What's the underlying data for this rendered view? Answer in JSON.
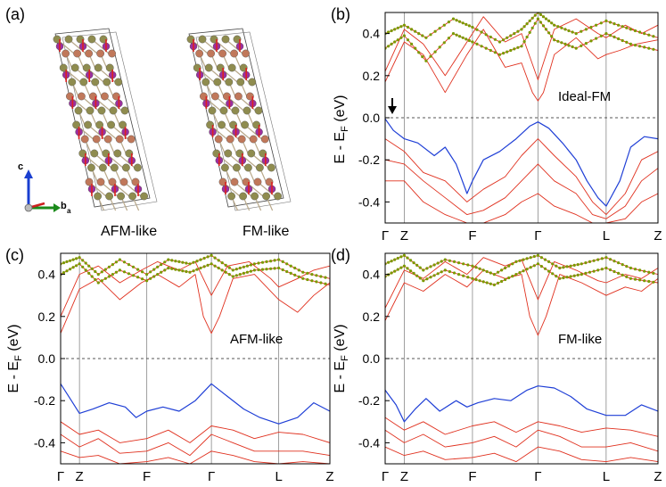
{
  "figure": {
    "panel_a": {
      "label": "(a)",
      "structures": [
        "AFM-like",
        "FM-like"
      ],
      "axes_labels": {
        "c": "c",
        "b": "b",
        "a": "a"
      },
      "colors": {
        "atom_olive": "#8f8c4f",
        "atom_copper": "#c0785a",
        "atom_magenta": "#9b2fa0",
        "spin_arrow": "#dd2020",
        "bond": "#b8a88a"
      }
    }
  },
  "chart_data": [
    {
      "id": "b",
      "type": "line",
      "panel_label": "(b)",
      "annotation": "Ideal-FM",
      "ylabel": "E - E",
      "ylabel_sub": "F",
      "ylabel_unit": " (eV)",
      "ylim": [
        -0.5,
        0.5
      ],
      "yticks": [
        "0.4",
        "0.2",
        "0.0",
        "-0.2",
        "-0.4"
      ],
      "ytick_values": [
        0.4,
        0.2,
        0.0,
        -0.2,
        -0.4
      ],
      "kpoints": [
        "Γ",
        "Z",
        "F",
        "Γ",
        "L",
        "Z"
      ],
      "kpositions": [
        0,
        0.07,
        0.32,
        0.56,
        0.81,
        1.0
      ],
      "fermi_level": 0.0,
      "colors": {
        "band": "#e0301e",
        "top_valence": "#1f3fd6",
        "marker": "#7a9a00"
      },
      "top_valence_band": {
        "k": [
          0,
          0.03,
          0.07,
          0.12,
          0.18,
          0.22,
          0.26,
          0.3,
          0.32,
          0.36,
          0.42,
          0.48,
          0.53,
          0.56,
          0.6,
          0.65,
          0.7,
          0.74,
          0.78,
          0.81,
          0.86,
          0.9,
          0.95,
          1.0
        ],
        "E": [
          -0.005,
          -0.06,
          -0.1,
          -0.12,
          -0.18,
          -0.14,
          -0.22,
          -0.36,
          -0.3,
          -0.2,
          -0.16,
          -0.1,
          -0.04,
          -0.02,
          -0.05,
          -0.12,
          -0.2,
          -0.3,
          -0.38,
          -0.42,
          -0.3,
          -0.14,
          -0.09,
          -0.1
        ]
      },
      "marker_bands": [
        {
          "k": [
            0,
            0.07,
            0.15,
            0.25,
            0.32,
            0.42,
            0.5,
            0.56,
            0.62,
            0.7,
            0.81,
            0.9,
            1.0
          ],
          "E": [
            0.4,
            0.44,
            0.38,
            0.47,
            0.43,
            0.36,
            0.42,
            0.5,
            0.44,
            0.4,
            0.46,
            0.42,
            0.38
          ]
        },
        {
          "k": [
            0,
            0.07,
            0.15,
            0.25,
            0.32,
            0.42,
            0.5,
            0.56,
            0.62,
            0.7,
            0.81,
            0.9,
            1.0
          ],
          "E": [
            0.33,
            0.39,
            0.27,
            0.4,
            0.36,
            0.3,
            0.34,
            0.47,
            0.37,
            0.33,
            0.4,
            0.35,
            0.32
          ]
        }
      ],
      "conduction_bands": [
        {
          "k": [
            0,
            0.07,
            0.14,
            0.22,
            0.3,
            0.36,
            0.44,
            0.5,
            0.54,
            0.56,
            0.58,
            0.62,
            0.7,
            0.78,
            0.81,
            0.86,
            0.92,
            1.0
          ],
          "E": [
            0.17,
            0.36,
            0.3,
            0.12,
            0.3,
            0.42,
            0.24,
            0.26,
            0.12,
            0.08,
            0.12,
            0.3,
            0.38,
            0.28,
            0.3,
            0.32,
            0.35,
            0.37
          ]
        },
        {
          "k": [
            0,
            0.07,
            0.14,
            0.22,
            0.3,
            0.36,
            0.44,
            0.5,
            0.56,
            0.62,
            0.7,
            0.78,
            0.81,
            0.88,
            0.94,
            1.0
          ],
          "E": [
            0.22,
            0.42,
            0.35,
            0.2,
            0.36,
            0.48,
            0.36,
            0.4,
            0.18,
            0.42,
            0.47,
            0.4,
            0.38,
            0.44,
            0.4,
            0.44
          ]
        }
      ],
      "valence_bands": [
        {
          "k": [
            0,
            0.07,
            0.14,
            0.22,
            0.3,
            0.36,
            0.44,
            0.5,
            0.56,
            0.62,
            0.7,
            0.76,
            0.81,
            0.88,
            0.94,
            1.0
          ],
          "E": [
            -0.1,
            -0.16,
            -0.26,
            -0.3,
            -0.4,
            -0.34,
            -0.28,
            -0.18,
            -0.1,
            -0.18,
            -0.28,
            -0.4,
            -0.46,
            -0.36,
            -0.2,
            -0.16
          ]
        },
        {
          "k": [
            0,
            0.07,
            0.14,
            0.22,
            0.3,
            0.36,
            0.44,
            0.5,
            0.56,
            0.62,
            0.7,
            0.76,
            0.81,
            0.88,
            0.94,
            1.0
          ],
          "E": [
            -0.2,
            -0.22,
            -0.3,
            -0.38,
            -0.46,
            -0.44,
            -0.38,
            -0.3,
            -0.22,
            -0.3,
            -0.36,
            -0.46,
            -0.48,
            -0.42,
            -0.3,
            -0.24
          ]
        },
        {
          "k": [
            0,
            0.07,
            0.14,
            0.22,
            0.3,
            0.36,
            0.44,
            0.5,
            0.56,
            0.62,
            0.7,
            0.76,
            0.81,
            0.88,
            0.94,
            1.0
          ],
          "E": [
            -0.3,
            -0.3,
            -0.4,
            -0.46,
            -0.5,
            -0.5,
            -0.46,
            -0.4,
            -0.36,
            -0.42,
            -0.46,
            -0.5,
            -0.5,
            -0.48,
            -0.4,
            -0.36
          ]
        }
      ]
    },
    {
      "id": "c",
      "type": "line",
      "panel_label": "(c)",
      "annotation": "AFM-like",
      "ylabel": "E - E",
      "ylabel_sub": "F",
      "ylabel_unit": " (eV)",
      "ylim": [
        -0.5,
        0.5
      ],
      "yticks": [
        "0.4",
        "0.2",
        "0.0",
        "-0.2",
        "-0.4"
      ],
      "ytick_values": [
        0.4,
        0.2,
        0.0,
        -0.2,
        -0.4
      ],
      "kpoints": [
        "Γ",
        "Z",
        "F",
        "Γ",
        "L",
        "Z"
      ],
      "kpositions": [
        0,
        0.07,
        0.32,
        0.56,
        0.81,
        1.0
      ],
      "fermi_level": 0.0,
      "colors": {
        "band": "#e0301e",
        "top_valence": "#1f3fd6",
        "marker": "#7a9a00"
      },
      "top_valence_band": {
        "k": [
          0,
          0.04,
          0.07,
          0.12,
          0.18,
          0.24,
          0.28,
          0.32,
          0.38,
          0.44,
          0.5,
          0.56,
          0.62,
          0.68,
          0.74,
          0.81,
          0.88,
          0.94,
          1.0
        ],
        "E": [
          -0.12,
          -0.2,
          -0.26,
          -0.24,
          -0.21,
          -0.23,
          -0.28,
          -0.25,
          -0.23,
          -0.25,
          -0.2,
          -0.12,
          -0.18,
          -0.24,
          -0.28,
          -0.31,
          -0.28,
          -0.21,
          -0.25
        ]
      },
      "marker_bands": [
        {
          "k": [
            0,
            0.07,
            0.14,
            0.22,
            0.32,
            0.4,
            0.48,
            0.56,
            0.64,
            0.72,
            0.81,
            0.9,
            1.0
          ],
          "E": [
            0.45,
            0.48,
            0.4,
            0.47,
            0.4,
            0.47,
            0.45,
            0.49,
            0.42,
            0.45,
            0.47,
            0.41,
            0.38
          ]
        },
        {
          "k": [
            0,
            0.07,
            0.14,
            0.22,
            0.32,
            0.4,
            0.48,
            0.56,
            0.64,
            0.72,
            0.81,
            0.9,
            1.0
          ],
          "E": [
            0.4,
            0.45,
            0.36,
            0.42,
            0.37,
            0.43,
            0.41,
            0.45,
            0.39,
            0.42,
            0.43,
            0.38,
            0.35
          ]
        }
      ],
      "conduction_bands": [
        {
          "k": [
            0,
            0.07,
            0.14,
            0.22,
            0.3,
            0.36,
            0.44,
            0.5,
            0.53,
            0.56,
            0.59,
            0.64,
            0.72,
            0.81,
            0.88,
            0.94,
            1.0
          ],
          "E": [
            0.12,
            0.33,
            0.38,
            0.28,
            0.36,
            0.4,
            0.34,
            0.4,
            0.2,
            0.12,
            0.2,
            0.38,
            0.4,
            0.28,
            0.22,
            0.3,
            0.36
          ]
        },
        {
          "k": [
            0,
            0.07,
            0.14,
            0.22,
            0.3,
            0.36,
            0.44,
            0.5,
            0.56,
            0.62,
            0.7,
            0.78,
            0.81,
            0.88,
            0.94,
            1.0
          ],
          "E": [
            0.2,
            0.4,
            0.44,
            0.36,
            0.42,
            0.46,
            0.42,
            0.46,
            0.3,
            0.44,
            0.46,
            0.38,
            0.34,
            0.38,
            0.42,
            0.44
          ]
        }
      ],
      "valence_bands": [
        {
          "k": [
            0,
            0.07,
            0.14,
            0.22,
            0.32,
            0.4,
            0.48,
            0.56,
            0.64,
            0.72,
            0.81,
            0.9,
            1.0
          ],
          "E": [
            -0.3,
            -0.36,
            -0.34,
            -0.4,
            -0.38,
            -0.34,
            -0.4,
            -0.32,
            -0.34,
            -0.38,
            -0.35,
            -0.36,
            -0.4
          ]
        },
        {
          "k": [
            0,
            0.07,
            0.14,
            0.22,
            0.32,
            0.4,
            0.48,
            0.56,
            0.64,
            0.72,
            0.81,
            0.9,
            1.0
          ],
          "E": [
            -0.36,
            -0.42,
            -0.38,
            -0.45,
            -0.44,
            -0.4,
            -0.46,
            -0.36,
            -0.4,
            -0.44,
            -0.44,
            -0.44,
            -0.46
          ]
        },
        {
          "k": [
            0,
            0.07,
            0.14,
            0.22,
            0.32,
            0.4,
            0.48,
            0.56,
            0.64,
            0.72,
            0.81,
            0.9,
            1.0
          ],
          "E": [
            -0.44,
            -0.47,
            -0.46,
            -0.5,
            -0.49,
            -0.47,
            -0.5,
            -0.44,
            -0.46,
            -0.49,
            -0.5,
            -0.49,
            -0.5
          ]
        }
      ]
    },
    {
      "id": "d",
      "type": "line",
      "panel_label": "(d)",
      "annotation": "FM-like",
      "ylabel": "E - E",
      "ylabel_sub": "F",
      "ylabel_unit": " (eV)",
      "ylim": [
        -0.5,
        0.5
      ],
      "yticks": [
        "0.4",
        "0.2",
        "0.0",
        "-0.2",
        "-0.4"
      ],
      "ytick_values": [
        0.4,
        0.2,
        0.0,
        -0.2,
        -0.4
      ],
      "kpoints": [
        "Γ",
        "Z",
        "F",
        "Γ",
        "L",
        "Z"
      ],
      "kpositions": [
        0,
        0.07,
        0.32,
        0.56,
        0.81,
        1.0
      ],
      "fermi_level": 0.0,
      "colors": {
        "band": "#e0301e",
        "top_valence": "#1f3fd6",
        "marker": "#7a9a00"
      },
      "top_valence_band": {
        "k": [
          0,
          0.04,
          0.07,
          0.11,
          0.15,
          0.2,
          0.26,
          0.3,
          0.34,
          0.4,
          0.46,
          0.52,
          0.56,
          0.62,
          0.68,
          0.74,
          0.81,
          0.88,
          0.94,
          1.0
        ],
        "E": [
          -0.15,
          -0.22,
          -0.3,
          -0.24,
          -0.19,
          -0.25,
          -0.2,
          -0.23,
          -0.21,
          -0.19,
          -0.2,
          -0.15,
          -0.13,
          -0.14,
          -0.18,
          -0.24,
          -0.27,
          -0.27,
          -0.22,
          -0.25
        ]
      },
      "marker_bands": [
        {
          "k": [
            0,
            0.07,
            0.14,
            0.22,
            0.32,
            0.4,
            0.48,
            0.56,
            0.64,
            0.72,
            0.81,
            0.9,
            1.0
          ],
          "E": [
            0.45,
            0.49,
            0.42,
            0.47,
            0.44,
            0.4,
            0.46,
            0.49,
            0.43,
            0.45,
            0.48,
            0.43,
            0.4
          ]
        },
        {
          "k": [
            0,
            0.07,
            0.14,
            0.22,
            0.32,
            0.4,
            0.48,
            0.56,
            0.64,
            0.72,
            0.81,
            0.9,
            1.0
          ],
          "E": [
            0.39,
            0.44,
            0.37,
            0.42,
            0.38,
            0.35,
            0.4,
            0.45,
            0.38,
            0.4,
            0.43,
            0.38,
            0.36
          ]
        }
      ],
      "conduction_bands": [
        {
          "k": [
            0,
            0.07,
            0.14,
            0.22,
            0.3,
            0.36,
            0.44,
            0.5,
            0.53,
            0.56,
            0.59,
            0.64,
            0.72,
            0.81,
            0.88,
            0.94,
            1.0
          ],
          "E": [
            0.18,
            0.36,
            0.32,
            0.4,
            0.34,
            0.42,
            0.38,
            0.4,
            0.2,
            0.11,
            0.2,
            0.4,
            0.36,
            0.3,
            0.34,
            0.32,
            0.38
          ]
        },
        {
          "k": [
            0,
            0.07,
            0.14,
            0.22,
            0.3,
            0.36,
            0.44,
            0.5,
            0.56,
            0.62,
            0.7,
            0.78,
            0.81,
            0.88,
            0.94,
            1.0
          ],
          "E": [
            0.24,
            0.42,
            0.38,
            0.46,
            0.4,
            0.48,
            0.44,
            0.47,
            0.28,
            0.46,
            0.42,
            0.37,
            0.36,
            0.4,
            0.38,
            0.43
          ]
        }
      ],
      "valence_bands": [
        {
          "k": [
            0,
            0.07,
            0.14,
            0.22,
            0.32,
            0.4,
            0.48,
            0.56,
            0.64,
            0.72,
            0.81,
            0.9,
            1.0
          ],
          "E": [
            -0.28,
            -0.34,
            -0.3,
            -0.36,
            -0.32,
            -0.3,
            -0.35,
            -0.3,
            -0.32,
            -0.35,
            -0.33,
            -0.34,
            -0.37
          ]
        },
        {
          "k": [
            0,
            0.07,
            0.14,
            0.22,
            0.32,
            0.4,
            0.48,
            0.56,
            0.64,
            0.72,
            0.81,
            0.9,
            1.0
          ],
          "E": [
            -0.34,
            -0.4,
            -0.36,
            -0.42,
            -0.4,
            -0.37,
            -0.42,
            -0.34,
            -0.37,
            -0.42,
            -0.42,
            -0.4,
            -0.44
          ]
        },
        {
          "k": [
            0,
            0.07,
            0.14,
            0.22,
            0.32,
            0.4,
            0.48,
            0.56,
            0.64,
            0.72,
            0.81,
            0.9,
            1.0
          ],
          "E": [
            -0.42,
            -0.46,
            -0.44,
            -0.48,
            -0.47,
            -0.45,
            -0.49,
            -0.42,
            -0.44,
            -0.48,
            -0.49,
            -0.47,
            -0.49
          ]
        }
      ]
    }
  ]
}
